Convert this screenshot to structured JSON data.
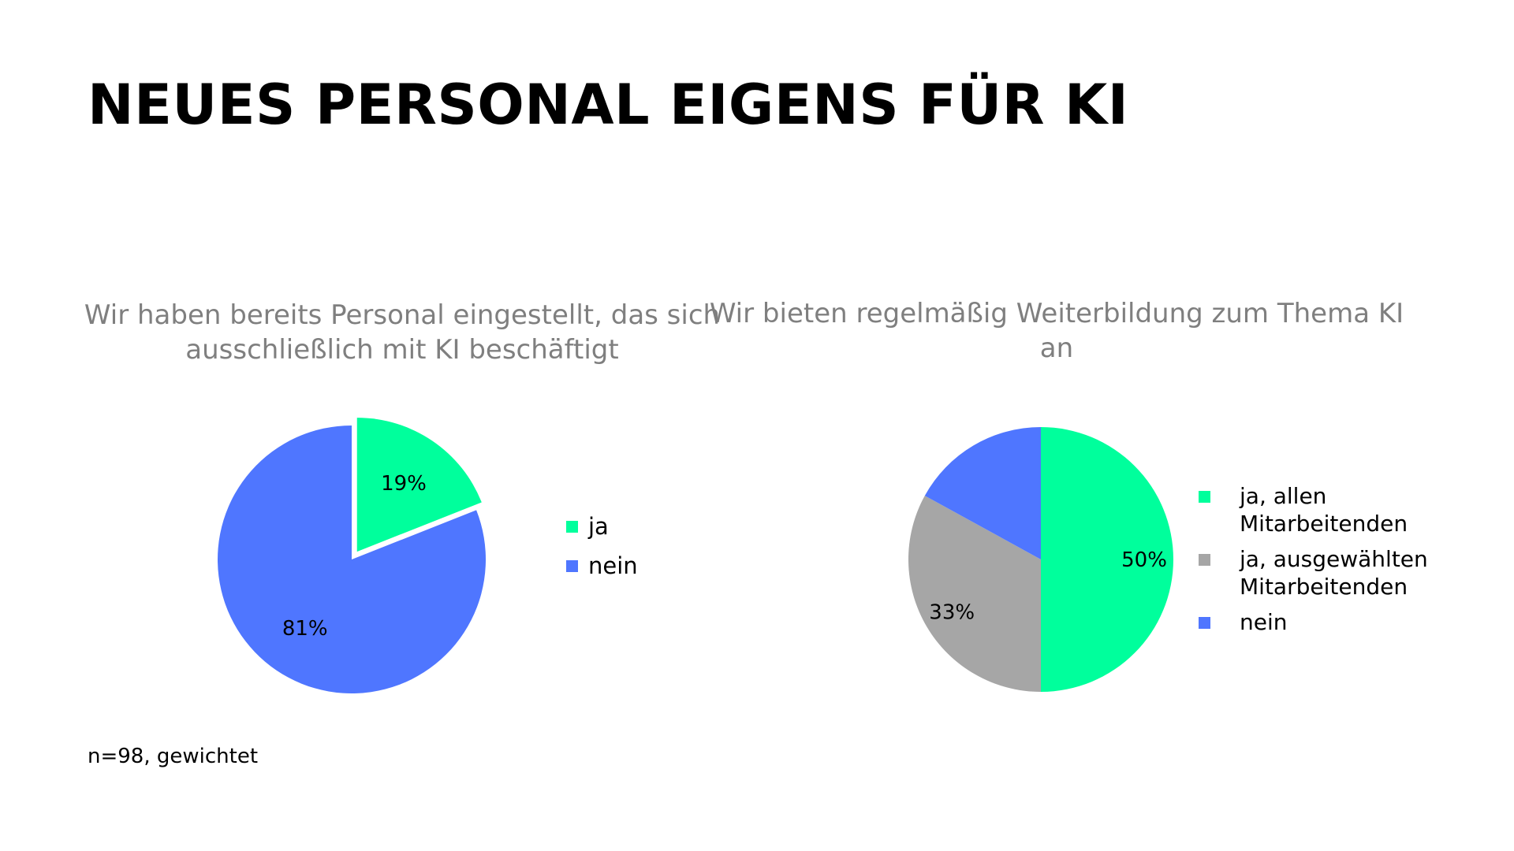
{
  "title": "NEUES PERSONAL EIGENS FÜR KI",
  "footnote": "n=98, gewichtet",
  "colors": {
    "ja": "#00ff9c",
    "nein": "#4f76ff",
    "ja_ausgewaehlt": "#a6a6a6",
    "title": "#000000",
    "chart_title": "#7f7f7f"
  },
  "chart_data": [
    {
      "type": "pie",
      "title": "Wir haben bereits Personal eingestellt, das sich ausschließlich mit KI beschäftigt",
      "categories": [
        "ja",
        "nein"
      ],
      "values": [
        19,
        81
      ],
      "labels": [
        "19%",
        "81%"
      ],
      "exploded": [
        true,
        false
      ],
      "legend": "right"
    },
    {
      "type": "pie",
      "title": "Wir bieten regelmäßig Weiterbildung zum Thema KI an",
      "categories": [
        "ja, allen Mitarbeitenden",
        "ja, ausgewählten Mitarbeitenden",
        "nein"
      ],
      "values": [
        50,
        33,
        17
      ],
      "labels": [
        "50%",
        "33%",
        ""
      ],
      "legend": "right"
    }
  ]
}
